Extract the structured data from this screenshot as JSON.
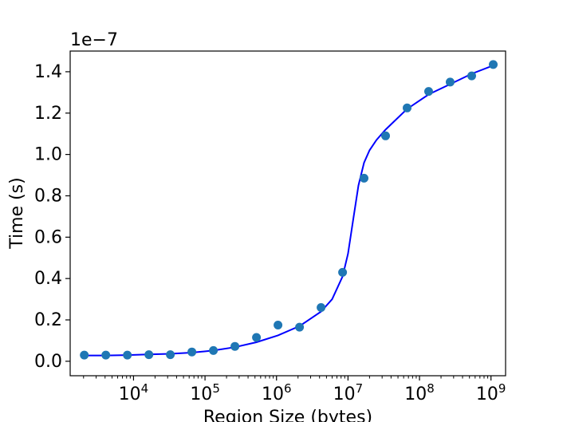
{
  "chart_data": {
    "type": "scatter",
    "title": "",
    "xlabel": "Region Size (bytes)",
    "ylabel": "Time (s)",
    "x_scale": "log",
    "y_offset_text": "1e−7",
    "xlim": [
      1300,
      1600000000
    ],
    "ylim": [
      -0.07,
      1.5
    ],
    "y_ticks": [
      0.0,
      0.2,
      0.4,
      0.6,
      0.8,
      1.0,
      1.2,
      1.4
    ],
    "y_tick_labels": [
      "0.0",
      "0.2",
      "0.4",
      "0.6",
      "0.8",
      "1.0",
      "1.2",
      "1.4"
    ],
    "x_ticks": [
      {
        "base": "10",
        "exp": "4",
        "value": 10000
      },
      {
        "base": "10",
        "exp": "5",
        "value": 100000
      },
      {
        "base": "10",
        "exp": "6",
        "value": 1000000
      },
      {
        "base": "10",
        "exp": "7",
        "value": 10000000
      },
      {
        "base": "10",
        "exp": "8",
        "value": 100000000
      },
      {
        "base": "10",
        "exp": "9",
        "value": 1000000000
      }
    ],
    "grid": false,
    "legend": "none",
    "series": [
      {
        "kind": "points",
        "color": "#1f77b4",
        "points": [
          [
            2048,
            0.03
          ],
          [
            4096,
            0.03
          ],
          [
            8192,
            0.03
          ],
          [
            16384,
            0.032
          ],
          [
            32768,
            0.032
          ],
          [
            65536,
            0.045
          ],
          [
            131072,
            0.052
          ],
          [
            262144,
            0.072
          ],
          [
            524288,
            0.115
          ],
          [
            1048576,
            0.175
          ],
          [
            2097152,
            0.165
          ],
          [
            4194304,
            0.26
          ],
          [
            8388608,
            0.43
          ],
          [
            16777216,
            0.885
          ],
          [
            33554432,
            1.09
          ],
          [
            67108864,
            1.225
          ],
          [
            134217728,
            1.305
          ],
          [
            268435456,
            1.35
          ],
          [
            536870912,
            1.38
          ],
          [
            1073741824,
            1.435
          ]
        ]
      },
      {
        "kind": "fit-curve",
        "color": "#0000ff",
        "points": [
          [
            2048,
            0.028
          ],
          [
            4096,
            0.028
          ],
          [
            8192,
            0.03
          ],
          [
            16384,
            0.033
          ],
          [
            32768,
            0.036
          ],
          [
            65536,
            0.042
          ],
          [
            131072,
            0.052
          ],
          [
            262144,
            0.068
          ],
          [
            524288,
            0.092
          ],
          [
            1048576,
            0.125
          ],
          [
            2097152,
            0.17
          ],
          [
            4194304,
            0.24
          ],
          [
            6000000,
            0.3
          ],
          [
            8388608,
            0.41
          ],
          [
            10000000,
            0.52
          ],
          [
            12000000,
            0.7
          ],
          [
            14000000,
            0.85
          ],
          [
            16777216,
            0.96
          ],
          [
            20000000,
            1.02
          ],
          [
            25000000,
            1.07
          ],
          [
            33554432,
            1.12
          ],
          [
            67108864,
            1.22
          ],
          [
            134217728,
            1.29
          ],
          [
            268435456,
            1.34
          ],
          [
            536870912,
            1.39
          ],
          [
            1073741824,
            1.43
          ]
        ]
      }
    ]
  }
}
